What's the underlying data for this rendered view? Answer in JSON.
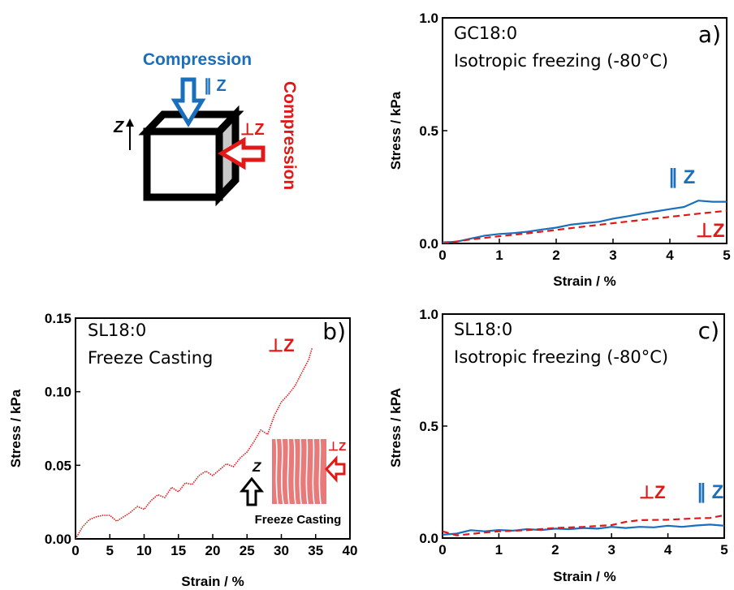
{
  "schematic": {
    "label_top": "Compression",
    "label_side": "Compression",
    "z_label": "Z",
    "par_z": "∥ Z",
    "perp_z": "⊥Z",
    "color_parallel": "#1a6fbd",
    "color_perp": "#e01818"
  },
  "chart_data": [
    {
      "type": "line",
      "panel_letter": "a)",
      "annotations": [
        "GC18:0",
        "Isotropic freezing (-80°C)"
      ],
      "xlabel": "Strain / %",
      "ylabel": "Stress / kPa",
      "xlim": [
        0,
        5
      ],
      "ylim": [
        0,
        1
      ],
      "xticks": [
        "0",
        "1",
        "2",
        "3",
        "4",
        "5"
      ],
      "yticks": [
        "0.0",
        "0.5",
        "1.0"
      ],
      "series": [
        {
          "name": "∥ Z",
          "color": "#1a6fbd",
          "style": "solid",
          "x": [
            0,
            0.25,
            0.5,
            0.75,
            1,
            1.25,
            1.5,
            1.75,
            2,
            2.25,
            2.5,
            2.75,
            3,
            3.25,
            3.5,
            3.75,
            4,
            4.25,
            4.5,
            4.75,
            5
          ],
          "y": [
            0.005,
            0.008,
            0.022,
            0.035,
            0.042,
            0.046,
            0.052,
            0.062,
            0.07,
            0.083,
            0.09,
            0.096,
            0.11,
            0.12,
            0.132,
            0.142,
            0.152,
            0.162,
            0.19,
            0.185,
            0.185
          ]
        },
        {
          "name": "⊥Z",
          "color": "#e01818",
          "style": "dashed",
          "x": [
            0,
            0.5,
            1,
            1.5,
            2,
            2.5,
            3,
            3.5,
            4,
            4.5,
            5
          ],
          "y": [
            0.0,
            0.018,
            0.032,
            0.045,
            0.06,
            0.075,
            0.09,
            0.104,
            0.118,
            0.132,
            0.145
          ]
        }
      ]
    },
    {
      "type": "line",
      "panel_letter": "b)",
      "annotations": [
        "SL18:0",
        "Freeze Casting"
      ],
      "inset_label": "Freeze Casting",
      "xlabel": "Strain / %",
      "ylabel": "Stress / kPa",
      "xlim": [
        0,
        40
      ],
      "ylim": [
        0,
        0.15
      ],
      "xticks": [
        "0",
        "5",
        "10",
        "15",
        "20",
        "25",
        "30",
        "35",
        "40"
      ],
      "yticks": [
        "0.00",
        "0.05",
        "0.10",
        "0.15"
      ],
      "series": [
        {
          "name": "⊥Z",
          "color": "#e01818",
          "style": "dotted",
          "x": [
            0,
            1,
            2,
            3,
            4,
            5,
            6,
            7,
            8,
            9,
            10,
            11,
            12,
            13,
            14,
            15,
            16,
            17,
            18,
            19,
            20,
            21,
            22,
            23,
            24,
            25,
            26,
            27,
            28,
            29,
            30,
            31,
            32,
            33,
            34,
            34.5
          ],
          "y": [
            0,
            0.008,
            0.013,
            0.015,
            0.016,
            0.016,
            0.012,
            0.015,
            0.018,
            0.022,
            0.02,
            0.026,
            0.03,
            0.028,
            0.035,
            0.032,
            0.038,
            0.037,
            0.043,
            0.046,
            0.043,
            0.047,
            0.051,
            0.049,
            0.055,
            0.059,
            0.066,
            0.074,
            0.071,
            0.084,
            0.093,
            0.098,
            0.104,
            0.113,
            0.122,
            0.13
          ]
        }
      ]
    },
    {
      "type": "line",
      "panel_letter": "c)",
      "annotations": [
        "SL18:0",
        "Isotropic freezing (-80°C)"
      ],
      "xlabel": "Strain / %",
      "ylabel": "Stress / kPA",
      "xlim": [
        0,
        5
      ],
      "ylim": [
        0,
        1
      ],
      "xticks": [
        "0",
        "1",
        "2",
        "3",
        "4",
        "5"
      ],
      "yticks": [
        "0.0",
        "0.5",
        "1.0"
      ],
      "series": [
        {
          "name": "∥ Z",
          "color": "#1a6fbd",
          "style": "solid",
          "x": [
            0,
            0.25,
            0.5,
            0.75,
            1,
            1.25,
            1.5,
            1.75,
            2,
            2.25,
            2.5,
            2.75,
            3,
            3.25,
            3.5,
            3.75,
            4,
            4.25,
            4.5,
            4.75,
            5
          ],
          "y": [
            0.015,
            0.02,
            0.035,
            0.03,
            0.036,
            0.033,
            0.04,
            0.036,
            0.042,
            0.04,
            0.045,
            0.042,
            0.05,
            0.045,
            0.05,
            0.048,
            0.055,
            0.05,
            0.056,
            0.06,
            0.055
          ]
        },
        {
          "name": "⊥Z",
          "color": "#e01818",
          "style": "dashed",
          "x": [
            0,
            0.25,
            0.5,
            0.75,
            1,
            1.5,
            2,
            2.5,
            3,
            3.25,
            3.5,
            4,
            4.5,
            4.75,
            5
          ],
          "y": [
            0.03,
            0.012,
            0.018,
            0.025,
            0.03,
            0.035,
            0.045,
            0.05,
            0.058,
            0.072,
            0.08,
            0.082,
            0.088,
            0.09,
            0.102
          ]
        }
      ]
    }
  ]
}
